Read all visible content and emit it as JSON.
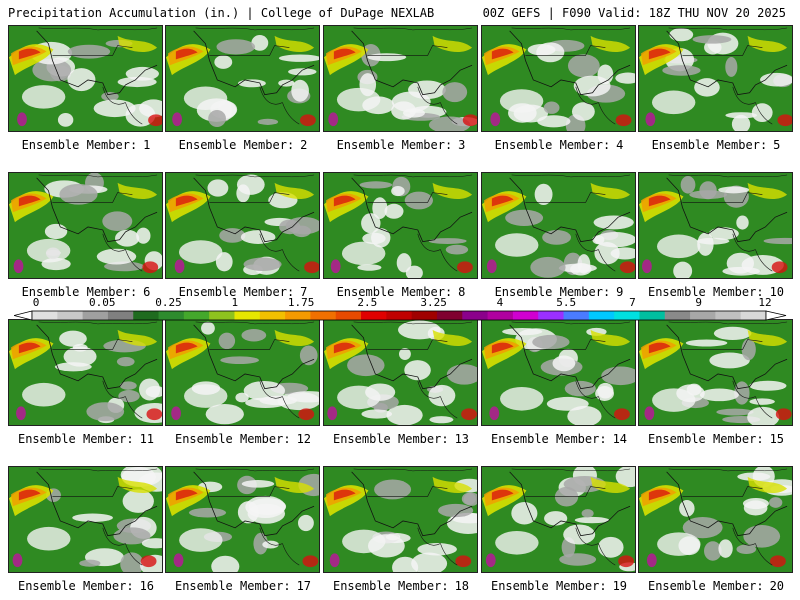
{
  "header": {
    "title_left": "Precipitation Accumulation (in.) | College of DuPage NEXLAB",
    "title_right": "00Z GEFS | F090 Valid: 18Z THU NOV 20 2025"
  },
  "member_prefix": "Ensemble Member:",
  "members": [
    {
      "id": 1,
      "label": "1"
    },
    {
      "id": 2,
      "label": "2"
    },
    {
      "id": 3,
      "label": "3"
    },
    {
      "id": 4,
      "label": "4"
    },
    {
      "id": 5,
      "label": "5"
    },
    {
      "id": 6,
      "label": "6"
    },
    {
      "id": 7,
      "label": "7"
    },
    {
      "id": 8,
      "label": "8"
    },
    {
      "id": 9,
      "label": "9"
    },
    {
      "id": 10,
      "label": "10"
    },
    {
      "id": 11,
      "label": "11"
    },
    {
      "id": 12,
      "label": "12"
    },
    {
      "id": 13,
      "label": "13"
    },
    {
      "id": 14,
      "label": "14"
    },
    {
      "id": 15,
      "label": "15"
    },
    {
      "id": 16,
      "label": "16"
    },
    {
      "id": 17,
      "label": "17"
    },
    {
      "id": 18,
      "label": "18"
    },
    {
      "id": 19,
      "label": "19"
    },
    {
      "id": 20,
      "label": "20"
    }
  ],
  "colorbar": {
    "tick_labels": [
      "0",
      "0.05",
      "0.25",
      "1",
      "1.75",
      "2.5",
      "3.25",
      "4",
      "5.5",
      "7",
      "9",
      "12"
    ],
    "colors": [
      "#e0e0e0",
      "#c8c8c8",
      "#a0a0a0",
      "#808080",
      "#1f6b1f",
      "#2e8b2e",
      "#44a82c",
      "#8ec21e",
      "#e6e600",
      "#f2c000",
      "#f59a00",
      "#f07000",
      "#e84a00",
      "#e00000",
      "#c00000",
      "#a00000",
      "#800030",
      "#8b008b",
      "#b0009f",
      "#d000d0",
      "#9b30ff",
      "#4a7bff",
      "#00c8ff",
      "#00e0e0",
      "#00bfa0",
      "#8a8a8a",
      "#a8a8a8",
      "#c0c0c0",
      "#d8d8d8"
    ]
  },
  "map_colors": {
    "green": "#2f8a22",
    "yellow": "#d8e000",
    "orange": "#f0a000",
    "red": "#d81010",
    "magenta": "#c0109f",
    "white": "#f4f4f4",
    "gray": "#a8a8a8"
  }
}
